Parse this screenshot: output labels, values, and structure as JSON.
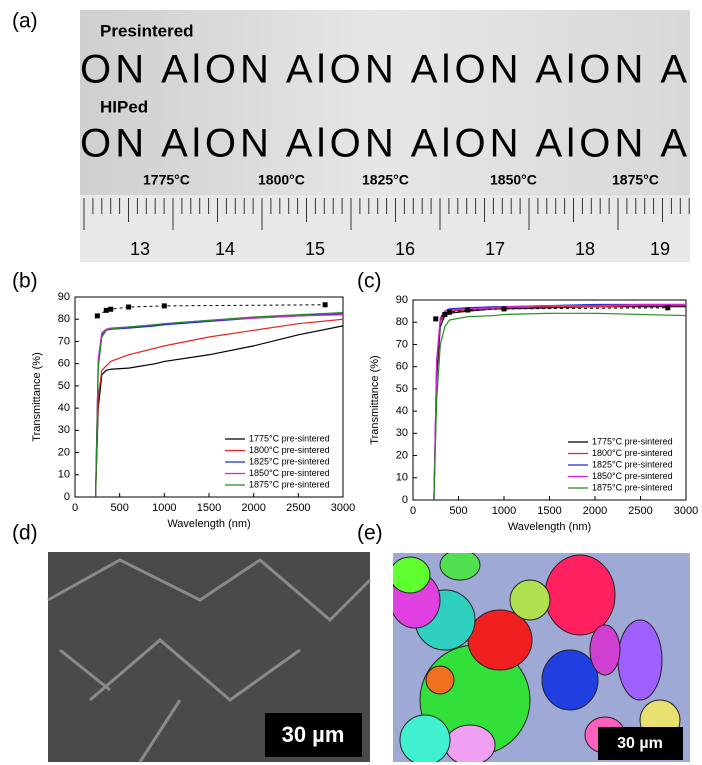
{
  "panel_labels": [
    "(a)",
    "(b)",
    "(c)",
    "(d)",
    "(e)"
  ],
  "photo": {
    "top_label": "Presintered",
    "bottom_label": "HIPed",
    "sample_text": "ON AlON AlON AlON AlON Al",
    "temperatures": [
      "1775°C",
      "1800°C",
      "1825°C",
      "1850°C",
      "1875°C"
    ],
    "ruler_numbers": [
      "13",
      "14",
      "15",
      "16",
      "17",
      "18",
      "19"
    ]
  },
  "micrographs": {
    "sem_scale": "30 µm",
    "ebsd_scale": "30 µm"
  },
  "chart_data": [
    {
      "type": "line",
      "x_label": "Wavelength (nm)",
      "y_label": "Transmittance (%)",
      "x": [
        230,
        260,
        300,
        350,
        400,
        600,
        900,
        1000,
        1500,
        2000,
        2500,
        3000
      ],
      "xlim": [
        0,
        3000
      ],
      "xticks": [
        0,
        500,
        1000,
        1500,
        2000,
        2500,
        3000
      ],
      "ylim": [
        0,
        90
      ],
      "yticks": [
        0,
        10,
        20,
        30,
        40,
        50,
        60,
        70,
        80,
        90
      ],
      "legend": "lower right",
      "series": [
        {
          "name": "1775°C pre-sintered",
          "color": "#000000",
          "values": [
            0,
            40,
            55,
            57,
            57.5,
            58,
            60,
            61,
            64,
            68,
            73,
            77
          ]
        },
        {
          "name": "1800°C pre-sintered",
          "color": "#e8231c",
          "values": [
            0,
            45,
            57,
            59,
            61,
            64,
            67,
            68,
            72,
            75,
            78,
            80
          ]
        },
        {
          "name": "1825°C pre-sintered",
          "color": "#1f2bd6",
          "values": [
            0,
            60,
            73,
            75,
            75.5,
            76,
            77,
            77.5,
            79,
            80.5,
            81.5,
            82.5
          ]
        },
        {
          "name": "1850°C pre-sintered",
          "color": "#d61fd6",
          "values": [
            0,
            62,
            74,
            75.5,
            76,
            76.5,
            77.5,
            78,
            79.5,
            80.5,
            81.5,
            82
          ]
        },
        {
          "name": "1875°C pre-sintered",
          "color": "#1f8a1f",
          "values": [
            0,
            58,
            72,
            75,
            75.5,
            76.5,
            77.5,
            78,
            79.5,
            81,
            82,
            83
          ]
        }
      ],
      "reference": {
        "x": [
          250,
          350,
          400,
          600,
          1000,
          2800
        ],
        "values": [
          81.5,
          84,
          84.5,
          85.5,
          86,
          86.5
        ],
        "color": "#000000"
      }
    },
    {
      "type": "line",
      "x_label": "Wavelength (nm)",
      "y_label": "Transmittance (%)",
      "x": [
        230,
        260,
        300,
        350,
        400,
        600,
        900,
        1000,
        1500,
        2000,
        2500,
        3000
      ],
      "xlim": [
        0,
        3000
      ],
      "xticks": [
        0,
        500,
        1000,
        1500,
        2000,
        2500,
        3000
      ],
      "ylim": [
        0,
        90
      ],
      "yticks": [
        0,
        10,
        20,
        30,
        40,
        50,
        60,
        70,
        80,
        90
      ],
      "legend": "lower right",
      "series": [
        {
          "name": "1775°C pre-sintered",
          "color": "#000000",
          "values": [
            0,
            55,
            78,
            83,
            84,
            85,
            86,
            86,
            86.5,
            87,
            87,
            87
          ]
        },
        {
          "name": "1800°C pre-sintered",
          "color": "#e8231c",
          "values": [
            0,
            60,
            80,
            84,
            85,
            85.5,
            86,
            86.5,
            87,
            87,
            87.5,
            87.5
          ]
        },
        {
          "name": "1825°C pre-sintered",
          "color": "#1f2bd6",
          "values": [
            0,
            62,
            81,
            85,
            86,
            86.5,
            87,
            87,
            87.5,
            88,
            88,
            88
          ]
        },
        {
          "name": "1850°C pre-sintered",
          "color": "#d61fd6",
          "values": [
            0,
            63,
            82,
            85,
            85.5,
            86,
            86.5,
            87,
            87.5,
            87.5,
            88,
            88
          ]
        },
        {
          "name": "1875°C pre-sintered",
          "color": "#1f8a1f",
          "values": [
            0,
            45,
            70,
            78,
            81,
            82.5,
            83,
            83.5,
            84,
            84,
            83.5,
            83
          ]
        }
      ],
      "reference": {
        "x": [
          250,
          350,
          400,
          600,
          1000,
          2800
        ],
        "values": [
          81.5,
          83.5,
          84.5,
          85.5,
          86,
          86.5
        ],
        "color": "#000000"
      }
    }
  ]
}
